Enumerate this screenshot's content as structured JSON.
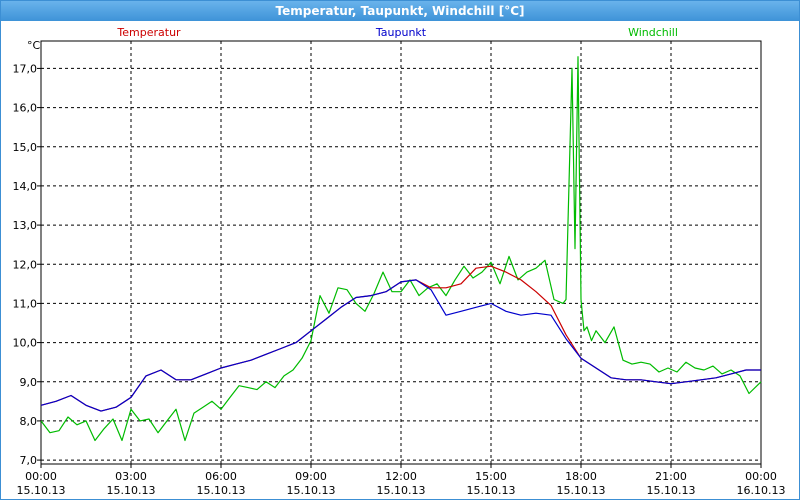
{
  "window": {
    "title": "Temperatur, Taupunkt, Windchill [°C]"
  },
  "chart_data": {
    "type": "line",
    "title": "Temperatur, Taupunkt, Windchill [°C]",
    "ylabel": "°C",
    "ylim": [
      6.9,
      17.7
    ],
    "xlim": [
      0,
      24
    ],
    "grid": true,
    "legend_placement": "top",
    "y_ticks": [
      "7,0",
      "8,0",
      "9,0",
      "10,0",
      "11,0",
      "12,0",
      "13,0",
      "14,0",
      "15,0",
      "16,0",
      "17,0"
    ],
    "x_ticks": [
      {
        "time": "00:00",
        "date": "15.10.13"
      },
      {
        "time": "03:00",
        "date": "15.10.13"
      },
      {
        "time": "06:00",
        "date": "15.10.13"
      },
      {
        "time": "09:00",
        "date": "15.10.13"
      },
      {
        "time": "12:00",
        "date": "15.10.13"
      },
      {
        "time": "15:00",
        "date": "15.10.13"
      },
      {
        "time": "18:00",
        "date": "15.10.13"
      },
      {
        "time": "21:00",
        "date": "15.10.13"
      },
      {
        "time": "00:00",
        "date": "16.10.13"
      }
    ],
    "series": [
      {
        "name": "Temperatur",
        "color": "#cc0000",
        "x": [
          0,
          0.5,
          1,
          1.5,
          2,
          2.5,
          3,
          3.5,
          4,
          4.5,
          5,
          5.5,
          6,
          6.5,
          7,
          7.5,
          8,
          8.5,
          9,
          9.5,
          10,
          10.5,
          11,
          11.5,
          12,
          12.5,
          13,
          13.5,
          14,
          14.5,
          15,
          15.5,
          16,
          16.5,
          17,
          17.5,
          18,
          18.5,
          19,
          19.5,
          20,
          20.5,
          21,
          21.5,
          22,
          22.5,
          23,
          23.5,
          24
        ],
        "values": [
          8.4,
          8.5,
          8.65,
          8.4,
          8.25,
          8.35,
          8.6,
          9.15,
          9.3,
          9.05,
          9.05,
          9.2,
          9.35,
          9.45,
          9.55,
          9.7,
          9.85,
          10.0,
          10.3,
          10.6,
          10.9,
          11.15,
          11.2,
          11.3,
          11.55,
          11.6,
          11.4,
          11.4,
          11.5,
          11.9,
          11.95,
          11.8,
          11.6,
          11.3,
          10.95,
          10.2,
          9.6,
          9.35,
          9.1,
          9.05,
          9.05,
          9.0,
          8.95,
          9.0,
          9.05,
          9.1,
          9.2,
          9.3,
          9.3
        ]
      },
      {
        "name": "Taupunkt",
        "color": "#0000cc",
        "x": [
          0,
          0.5,
          1,
          1.5,
          2,
          2.5,
          3,
          3.5,
          4,
          4.5,
          5,
          5.5,
          6,
          6.5,
          7,
          7.5,
          8,
          8.5,
          9,
          9.5,
          10,
          10.5,
          11,
          11.5,
          12,
          12.5,
          13,
          13.5,
          14,
          14.5,
          15,
          15.5,
          16,
          16.5,
          17,
          17.5,
          18,
          18.5,
          19,
          19.5,
          20,
          20.5,
          21,
          21.5,
          22,
          22.5,
          23,
          23.5,
          24
        ],
        "values": [
          8.4,
          8.5,
          8.65,
          8.4,
          8.25,
          8.35,
          8.6,
          9.15,
          9.3,
          9.05,
          9.05,
          9.2,
          9.35,
          9.45,
          9.55,
          9.7,
          9.85,
          10.0,
          10.3,
          10.6,
          10.9,
          11.15,
          11.2,
          11.3,
          11.55,
          11.6,
          11.35,
          10.7,
          10.8,
          10.9,
          11.0,
          10.8,
          10.7,
          10.75,
          10.7,
          10.1,
          9.6,
          9.35,
          9.1,
          9.05,
          9.05,
          9.0,
          8.95,
          9.0,
          9.05,
          9.1,
          9.2,
          9.3,
          9.3
        ]
      },
      {
        "name": "Windchill",
        "color": "#00bb00",
        "x": [
          0,
          0.3,
          0.6,
          0.9,
          1.2,
          1.5,
          1.8,
          2.1,
          2.4,
          2.7,
          3.0,
          3.3,
          3.6,
          3.9,
          4.2,
          4.5,
          4.8,
          5.1,
          5.4,
          5.7,
          6.0,
          6.3,
          6.6,
          6.9,
          7.2,
          7.5,
          7.8,
          8.1,
          8.4,
          8.7,
          9.0,
          9.3,
          9.6,
          9.9,
          10.2,
          10.5,
          10.8,
          11.1,
          11.4,
          11.7,
          12.0,
          12.3,
          12.6,
          12.9,
          13.2,
          13.5,
          13.8,
          14.1,
          14.4,
          14.7,
          15.0,
          15.3,
          15.6,
          15.9,
          16.2,
          16.5,
          16.8,
          17.1,
          17.4,
          17.5,
          17.7,
          17.8,
          17.9,
          18.0,
          18.1,
          18.2,
          18.35,
          18.5,
          18.8,
          19.1,
          19.4,
          19.7,
          20.0,
          20.3,
          20.6,
          20.9,
          21.2,
          21.5,
          21.8,
          22.1,
          22.4,
          22.7,
          23.0,
          23.3,
          23.6,
          24.0
        ],
        "values": [
          8.0,
          7.7,
          7.75,
          8.1,
          7.9,
          8.0,
          7.5,
          7.8,
          8.05,
          7.5,
          8.3,
          8.0,
          8.05,
          7.7,
          8.0,
          8.3,
          7.5,
          8.2,
          8.35,
          8.5,
          8.3,
          8.6,
          8.9,
          8.85,
          8.8,
          9.0,
          8.85,
          9.15,
          9.3,
          9.6,
          10.05,
          11.2,
          10.75,
          11.4,
          11.35,
          11.0,
          10.8,
          11.25,
          11.8,
          11.3,
          11.3,
          11.6,
          11.2,
          11.4,
          11.5,
          11.2,
          11.6,
          11.95,
          11.65,
          11.8,
          12.05,
          11.5,
          12.2,
          11.6,
          11.8,
          11.9,
          12.1,
          11.1,
          11.0,
          11.1,
          17.0,
          12.4,
          17.3,
          11.1,
          10.3,
          10.4,
          10.05,
          10.3,
          10.0,
          10.4,
          9.55,
          9.45,
          9.5,
          9.45,
          9.25,
          9.35,
          9.25,
          9.5,
          9.35,
          9.3,
          9.4,
          9.2,
          9.3,
          9.15,
          8.7,
          9.0
        ]
      }
    ]
  }
}
